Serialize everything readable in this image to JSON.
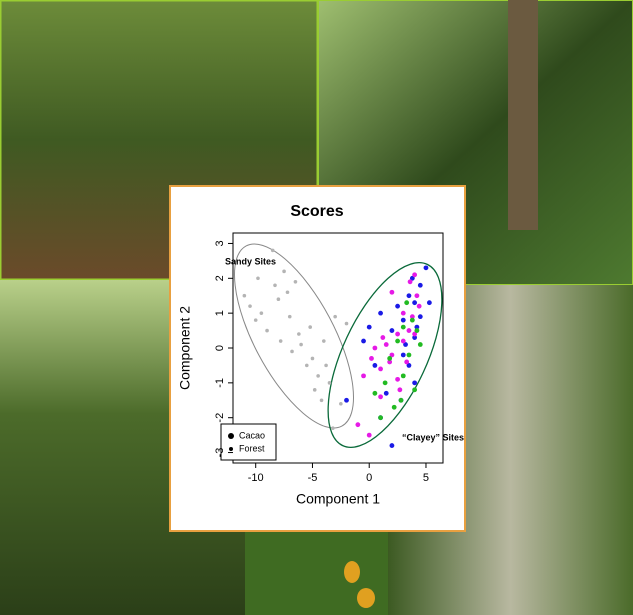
{
  "chart_data": {
    "type": "scatter",
    "title": "Scores",
    "x_label": "Component 1",
    "y_label": "Component 2",
    "xlim": [
      -12,
      6.5
    ],
    "ylim": [
      -3.3,
      3.3
    ],
    "xticks": [
      -10,
      -5,
      0,
      5
    ],
    "yticks": [
      -3,
      -2,
      -1,
      0,
      1,
      2,
      3
    ],
    "annotations": [
      "Sandy Sites",
      "“Clayey” Sites"
    ],
    "legend": [
      "Cacao",
      "Forest"
    ],
    "series": [
      {
        "color": "#b4b4b4",
        "x": [
          -11,
          -10.5,
          -10,
          -9.8,
          -9.5,
          -9,
          -8.5,
          -8.3,
          -8,
          -7.8,
          -7.5,
          -7.2,
          -7,
          -6.8,
          -6.5,
          -6.2,
          -6,
          -5.5,
          -5.2,
          -5,
          -4.8,
          -4.5,
          -4.2,
          -4,
          -3.8,
          -3.5,
          -3.2,
          -3,
          -2.5,
          -2
        ],
        "y": [
          1.5,
          1.2,
          0.8,
          2.0,
          1.0,
          0.5,
          2.8,
          1.8,
          1.4,
          0.2,
          2.2,
          1.6,
          0.9,
          -0.1,
          1.9,
          0.4,
          0.1,
          -0.5,
          0.6,
          -0.3,
          -1.2,
          -0.8,
          -1.5,
          0.2,
          -0.5,
          -1.0,
          -2.3,
          0.9,
          -1.6,
          0.7
        ]
      },
      {
        "color": "#1a1ae6",
        "x": [
          -2,
          -0.5,
          0.5,
          1,
          1.5,
          2,
          2,
          2.5,
          3,
          3,
          3.5,
          3.5,
          4,
          4,
          4,
          4.5,
          4.5,
          5,
          5.3,
          1,
          0,
          2.8,
          3.8,
          4.2,
          3.2
        ],
        "y": [
          -1.5,
          0.2,
          -0.5,
          1.0,
          -1.3,
          0.5,
          -2.8,
          1.2,
          -0.2,
          0.8,
          1.5,
          -0.5,
          1.3,
          0.3,
          -1.0,
          1.8,
          0.9,
          2.3,
          1.3,
          -2,
          0.6,
          -1.5,
          2.0,
          0.6,
          0.1
        ]
      },
      {
        "color": "#e61ae6",
        "x": [
          -1,
          -0.5,
          0,
          0.5,
          1,
          1.2,
          1.5,
          2,
          2,
          2.5,
          2.5,
          3,
          3,
          3.3,
          3.5,
          3.8,
          4,
          4,
          4.2,
          2.7,
          1.8,
          1,
          3.6,
          0.2,
          4.4
        ],
        "y": [
          -2.2,
          -0.8,
          -2.5,
          0.0,
          -0.6,
          0.3,
          0.1,
          -0.2,
          1.6,
          0.4,
          -0.9,
          0.2,
          1.0,
          -0.4,
          0.5,
          0.9,
          2.1,
          0.4,
          1.5,
          -1.2,
          -0.4,
          -1.4,
          1.9,
          -0.3,
          1.2
        ]
      },
      {
        "color": "#22bb22",
        "x": [
          0.5,
          1,
          1.8,
          2.2,
          2.5,
          3,
          3,
          3.5,
          3.8,
          4,
          4.2,
          2.8,
          1.4,
          3.3,
          4.5
        ],
        "y": [
          -1.3,
          -2,
          -0.3,
          -1.7,
          0.2,
          -0.8,
          0.6,
          -0.2,
          0.8,
          -1.2,
          0.5,
          -1.5,
          -1.0,
          1.3,
          0.1
        ]
      }
    ]
  }
}
